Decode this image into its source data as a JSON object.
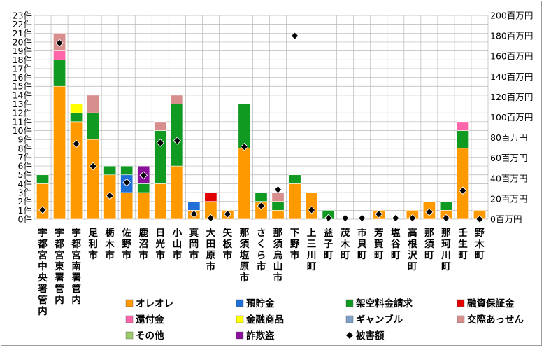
{
  "chart_data": {
    "type": "bar",
    "stacked": true,
    "secondary_series_type": "scatter",
    "left_axis": {
      "unit": "件",
      "ylim": [
        0,
        23
      ],
      "tick_labels": [
        "0件",
        "1件",
        "2件",
        "3件",
        "4件",
        "5件",
        "6件",
        "7件",
        "8件",
        "9件",
        "10件",
        "11件",
        "12件",
        "13件",
        "14件",
        "15件",
        "16件",
        "17件",
        "18件",
        "19件",
        "20件",
        "21件",
        "22件",
        "23件"
      ]
    },
    "right_axis": {
      "unit": "百万円",
      "ylim": [
        0,
        200
      ],
      "tick_labels": [
        "0百万円",
        "20百万円",
        "40百万円",
        "60百万円",
        "80百万円",
        "100百万円",
        "120百万円",
        "140百万円",
        "160百万円",
        "180百万円",
        "200百万円"
      ]
    },
    "grid": true,
    "legend_position": "bottom-right",
    "categories": [
      "宇都宮中央署管内",
      "宇都宮東署管内",
      "宇都宮南署管内",
      "足利市",
      "栃木市",
      "佐野市",
      "鹿沼市",
      "日光市",
      "小山市",
      "真岡市",
      "大田原市",
      "矢板市",
      "那須塩原市",
      "さくら市",
      "那須烏山市",
      "下野市",
      "上三川町",
      "益子町",
      "茂木町",
      "市貝町",
      "芳賀町",
      "塩谷町",
      "高根沢町",
      "那須町",
      "那珂川町",
      "壬生町",
      "野木町"
    ],
    "series": [
      {
        "name": "オレオレ",
        "color": "#ff9900",
        "values": [
          4,
          15,
          11,
          9,
          5,
          3,
          3,
          4,
          6,
          1,
          2,
          1,
          8,
          2,
          1,
          4,
          3,
          0,
          0,
          0,
          1,
          0,
          1,
          2,
          1,
          8,
          1
        ]
      },
      {
        "name": "預貯金",
        "color": "#1f6fd6",
        "values": [
          0,
          0,
          0,
          0,
          0,
          2,
          0,
          0,
          0,
          1,
          0,
          0,
          0,
          0,
          0,
          0,
          0,
          0,
          0,
          0,
          0,
          0,
          0,
          0,
          0,
          0,
          0
        ]
      },
      {
        "name": "架空料金請求",
        "color": "#119a22",
        "values": [
          1,
          3,
          1,
          3,
          1,
          1,
          1,
          6,
          7,
          0,
          0,
          0,
          5,
          1,
          1,
          1,
          0,
          1,
          0,
          0,
          0,
          0,
          0,
          0,
          1,
          2,
          0
        ]
      },
      {
        "name": "融資保証金",
        "color": "#e00000",
        "values": [
          0,
          0,
          0,
          0,
          0,
          0,
          0,
          0,
          0,
          0,
          1,
          0,
          0,
          0,
          0,
          0,
          0,
          0,
          0,
          0,
          0,
          0,
          0,
          0,
          0,
          0,
          0
        ]
      },
      {
        "name": "還付金",
        "color": "#ff66aa",
        "values": [
          0,
          1,
          0,
          0,
          0,
          0,
          0,
          0,
          0,
          0,
          0,
          0,
          0,
          0,
          0,
          0,
          0,
          0,
          0,
          0,
          0,
          0,
          0,
          0,
          0,
          1,
          0
        ]
      },
      {
        "name": "金融商品",
        "color": "#ffff00",
        "values": [
          0,
          0,
          1,
          0,
          0,
          0,
          0,
          0,
          0,
          0,
          0,
          0,
          0,
          0,
          0,
          0,
          0,
          0,
          0,
          0,
          0,
          0,
          0,
          0,
          0,
          0,
          0
        ]
      },
      {
        "name": "ギャンブル",
        "color": "#7f9ec8",
        "values": [
          0,
          0,
          0,
          0,
          0,
          0,
          0,
          0,
          0,
          0,
          0,
          0,
          0,
          0,
          0,
          0,
          0,
          0,
          0,
          0,
          0,
          0,
          0,
          0,
          0,
          0,
          0
        ]
      },
      {
        "name": "交際あっせん",
        "color": "#d98e8e",
        "values": [
          0,
          2,
          0,
          2,
          0,
          0,
          0,
          1,
          1,
          0,
          0,
          0,
          0,
          0,
          1,
          0,
          0,
          0,
          0,
          0,
          0,
          0,
          0,
          0,
          0,
          0,
          0
        ]
      },
      {
        "name": "その他",
        "color": "#9ccc6a",
        "values": [
          0,
          0,
          0,
          0,
          0,
          0,
          0,
          0,
          0,
          0,
          0,
          0,
          0,
          0,
          0,
          0,
          0,
          0,
          0,
          0,
          0,
          0,
          0,
          0,
          0,
          0,
          0
        ]
      },
      {
        "name": "詐欺盗",
        "color": "#8a0f9a",
        "values": [
          0,
          0,
          0,
          0,
          0,
          0,
          2,
          0,
          0,
          0,
          0,
          0,
          0,
          0,
          0,
          0,
          0,
          0,
          0,
          0,
          0,
          0,
          0,
          0,
          0,
          0,
          0
        ]
      }
    ],
    "damage_series": {
      "name": "被害額",
      "axis": "right",
      "values": [
        9,
        173,
        74,
        52,
        23,
        36,
        43,
        75,
        77,
        5,
        1,
        5,
        71,
        13,
        29,
        180,
        9,
        1,
        1,
        1,
        5,
        1,
        1,
        7,
        1,
        28,
        0
      ]
    }
  }
}
